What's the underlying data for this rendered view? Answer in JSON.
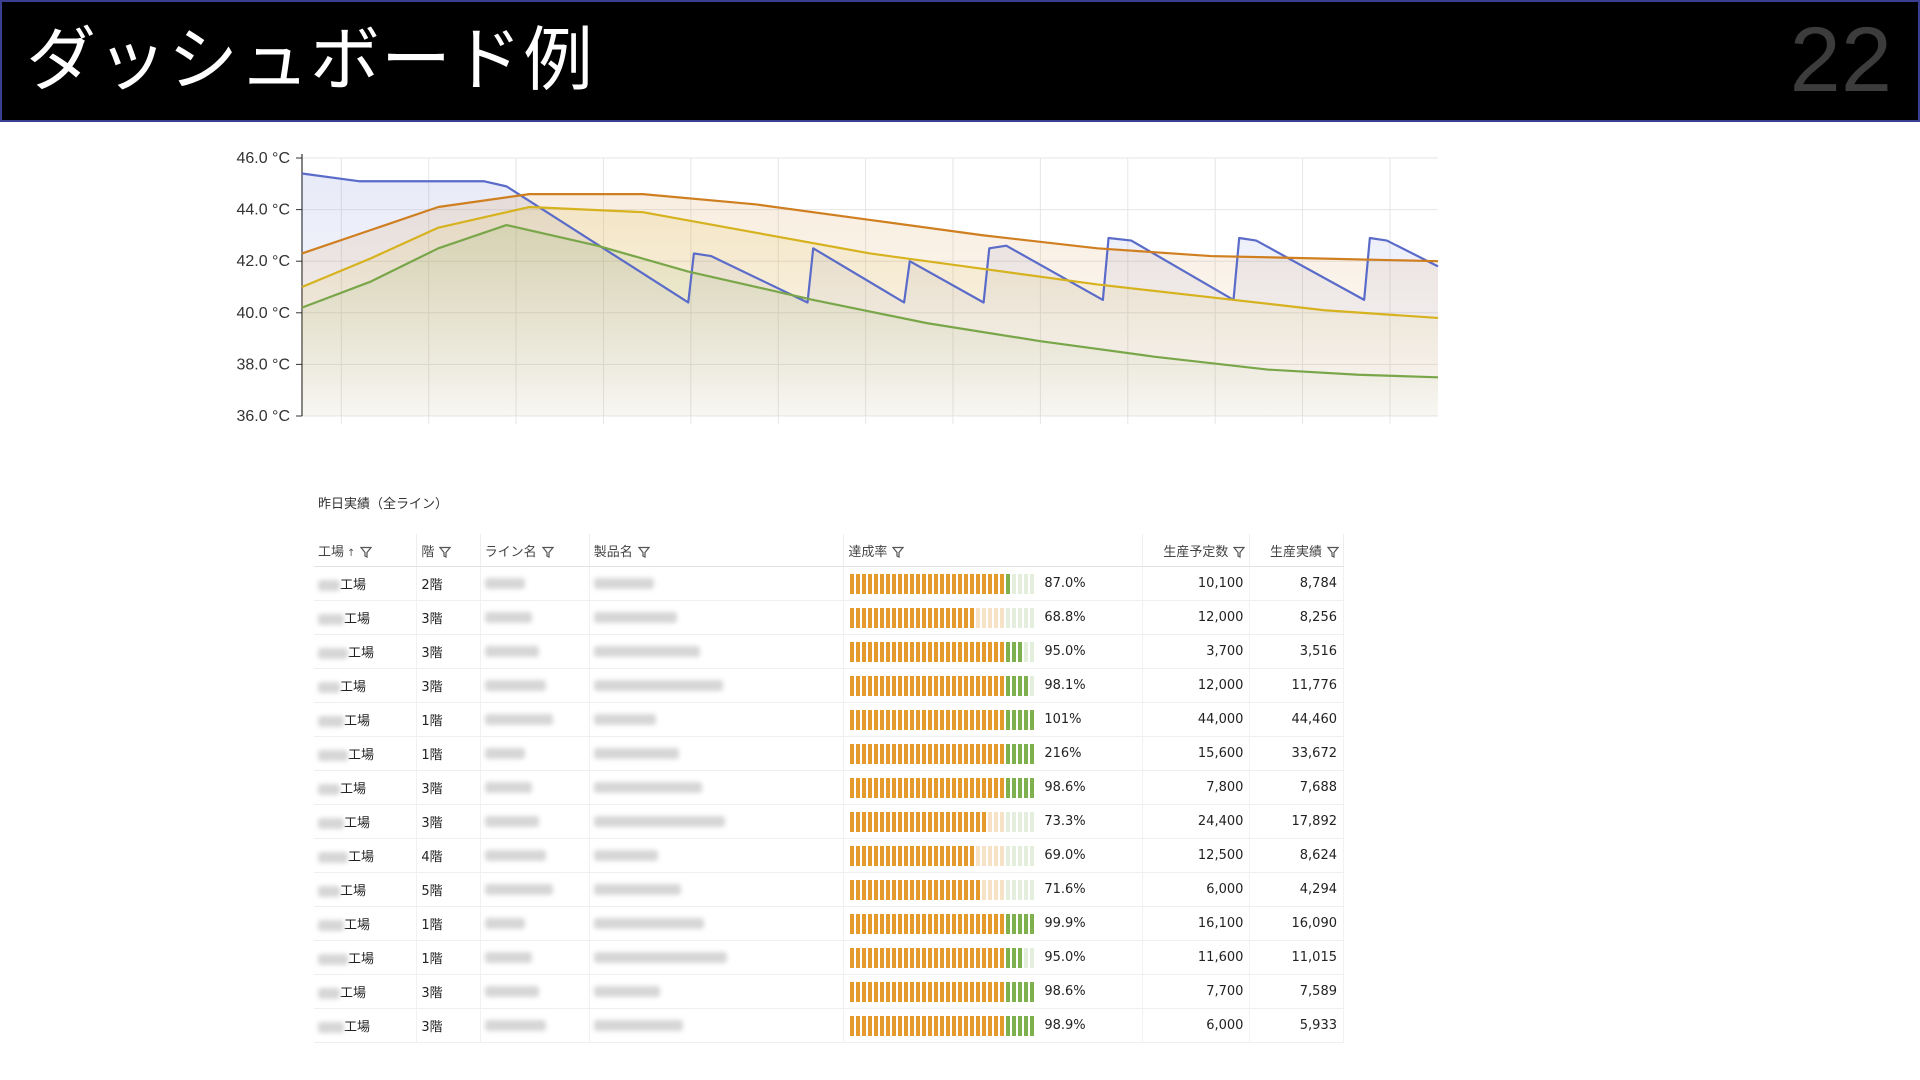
{
  "header": {
    "title": "ダッシュボード例",
    "page_number": "22"
  },
  "chart_data": {
    "type": "line",
    "ylabel_unit": "°C",
    "ylim": [
      36.0,
      46.0
    ],
    "yticks": [
      "46.0 °C",
      "44.0 °C",
      "42.0 °C",
      "40.0 °C",
      "38.0 °C",
      "36.0 °C"
    ],
    "grid": true,
    "series": [
      {
        "color": "#5a6bc9",
        "points": [
          [
            0,
            45.4
          ],
          [
            0.05,
            45.1
          ],
          [
            0.16,
            45.1
          ],
          [
            0.18,
            44.9
          ],
          [
            0.34,
            40.4
          ],
          [
            0.345,
            42.3
          ],
          [
            0.36,
            42.2
          ],
          [
            0.445,
            40.4
          ],
          [
            0.45,
            42.5
          ],
          [
            0.53,
            40.4
          ],
          [
            0.535,
            42.0
          ],
          [
            0.6,
            40.4
          ],
          [
            0.605,
            42.5
          ],
          [
            0.62,
            42.6
          ],
          [
            0.705,
            40.5
          ],
          [
            0.71,
            42.9
          ],
          [
            0.73,
            42.8
          ],
          [
            0.82,
            40.5
          ],
          [
            0.825,
            42.9
          ],
          [
            0.84,
            42.8
          ],
          [
            0.935,
            40.5
          ],
          [
            0.94,
            42.9
          ],
          [
            0.955,
            42.8
          ],
          [
            1.0,
            41.8
          ]
        ]
      },
      {
        "color": "#cf7f1f",
        "points": [
          [
            0,
            42.3
          ],
          [
            0.06,
            43.2
          ],
          [
            0.12,
            44.1
          ],
          [
            0.2,
            44.6
          ],
          [
            0.3,
            44.6
          ],
          [
            0.4,
            44.2
          ],
          [
            0.5,
            43.6
          ],
          [
            0.6,
            43.0
          ],
          [
            0.7,
            42.5
          ],
          [
            0.8,
            42.2
          ],
          [
            0.9,
            42.1
          ],
          [
            1.0,
            42.0
          ]
        ]
      },
      {
        "color": "#d6b21f",
        "points": [
          [
            0,
            41.0
          ],
          [
            0.06,
            42.1
          ],
          [
            0.12,
            43.3
          ],
          [
            0.2,
            44.1
          ],
          [
            0.3,
            43.9
          ],
          [
            0.4,
            43.1
          ],
          [
            0.5,
            42.3
          ],
          [
            0.6,
            41.7
          ],
          [
            0.7,
            41.1
          ],
          [
            0.8,
            40.6
          ],
          [
            0.9,
            40.1
          ],
          [
            1.0,
            39.8
          ]
        ]
      },
      {
        "color": "#7aa64a",
        "points": [
          [
            0,
            40.2
          ],
          [
            0.06,
            41.2
          ],
          [
            0.12,
            42.5
          ],
          [
            0.18,
            43.4
          ],
          [
            0.26,
            42.6
          ],
          [
            0.34,
            41.6
          ],
          [
            0.45,
            40.5
          ],
          [
            0.55,
            39.6
          ],
          [
            0.65,
            38.9
          ],
          [
            0.75,
            38.3
          ],
          [
            0.85,
            37.8
          ],
          [
            0.93,
            37.6
          ],
          [
            1.0,
            37.5
          ]
        ]
      }
    ]
  },
  "table": {
    "title": "昨日実績（全ライン）",
    "columns": [
      "工場",
      "階",
      "ライン名",
      "製品名",
      "達成率",
      "生産予定数",
      "生産実績"
    ],
    "rows": [
      {
        "factory": "工場",
        "floor": "2階",
        "rate": 0.87,
        "rate_label": "87.0%",
        "plan": "10,100",
        "actual": "8,784"
      },
      {
        "factory": "工場",
        "floor": "3階",
        "rate": 0.688,
        "rate_label": "68.8%",
        "plan": "12,000",
        "actual": "8,256"
      },
      {
        "factory": "工場",
        "floor": "3階",
        "rate": 0.95,
        "rate_label": "95.0%",
        "plan": "3,700",
        "actual": "3,516"
      },
      {
        "factory": "工場",
        "floor": "3階",
        "rate": 0.981,
        "rate_label": "98.1%",
        "plan": "12,000",
        "actual": "11,776"
      },
      {
        "factory": "工場",
        "floor": "1階",
        "rate": 1.01,
        "rate_label": "101%",
        "plan": "44,000",
        "actual": "44,460"
      },
      {
        "factory": "工場",
        "floor": "1階",
        "rate": 2.16,
        "rate_label": "216%",
        "plan": "15,600",
        "actual": "33,672"
      },
      {
        "factory": "工場",
        "floor": "3階",
        "rate": 0.986,
        "rate_label": "98.6%",
        "plan": "7,800",
        "actual": "7,688"
      },
      {
        "factory": "工場",
        "floor": "3階",
        "rate": 0.733,
        "rate_label": "73.3%",
        "plan": "24,400",
        "actual": "17,892"
      },
      {
        "factory": "工場",
        "floor": "4階",
        "rate": 0.69,
        "rate_label": "69.0%",
        "plan": "12,500",
        "actual": "8,624"
      },
      {
        "factory": "工場",
        "floor": "5階",
        "rate": 0.716,
        "rate_label": "71.6%",
        "plan": "6,000",
        "actual": "4,294"
      },
      {
        "factory": "工場",
        "floor": "1階",
        "rate": 0.999,
        "rate_label": "99.9%",
        "plan": "16,100",
        "actual": "16,090"
      },
      {
        "factory": "工場",
        "floor": "1階",
        "rate": 0.95,
        "rate_label": "95.0%",
        "plan": "11,600",
        "actual": "11,015"
      },
      {
        "factory": "工場",
        "floor": "3階",
        "rate": 0.986,
        "rate_label": "98.6%",
        "plan": "7,700",
        "actual": "7,589"
      },
      {
        "factory": "工場",
        "floor": "3階",
        "rate": 0.989,
        "rate_label": "98.9%",
        "plan": "6,000",
        "actual": "5,933"
      }
    ]
  }
}
